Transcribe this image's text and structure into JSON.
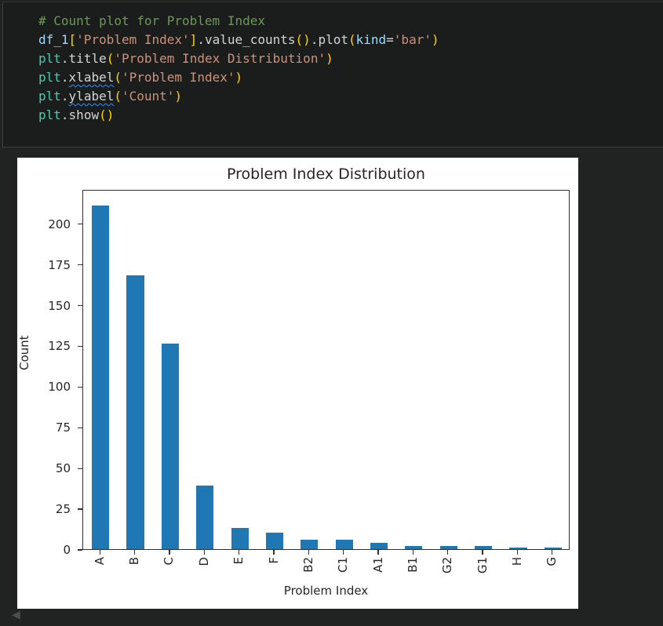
{
  "editor": {
    "palette": {
      "comment": "#6a9955",
      "variable": "#9cdcfe",
      "string": "#ce9178",
      "bracket": "#ffd700",
      "plain": "#d4d4d4",
      "module": "#4ec9b0"
    },
    "squiggle_color": "#3b8eea",
    "lines": [
      [
        {
          "text": "# Count plot for Problem Index",
          "color": "comment"
        }
      ],
      [
        {
          "text": "df_1",
          "color": "variable"
        },
        {
          "text": "[",
          "color": "bracket"
        },
        {
          "text": "'Problem Index'",
          "color": "string"
        },
        {
          "text": "]",
          "color": "bracket"
        },
        {
          "text": ".",
          "color": "plain"
        },
        {
          "text": "value_counts",
          "color": "plain"
        },
        {
          "text": "()",
          "color": "bracket"
        },
        {
          "text": ".",
          "color": "plain"
        },
        {
          "text": "plot",
          "color": "plain"
        },
        {
          "text": "(",
          "color": "bracket"
        },
        {
          "text": "kind",
          "color": "variable"
        },
        {
          "text": "=",
          "color": "plain"
        },
        {
          "text": "'bar'",
          "color": "string"
        },
        {
          "text": ")",
          "color": "bracket"
        }
      ],
      [
        {
          "text": "plt",
          "color": "module"
        },
        {
          "text": ".",
          "color": "plain"
        },
        {
          "text": "title",
          "color": "plain"
        },
        {
          "text": "(",
          "color": "bracket"
        },
        {
          "text": "'Problem Index Distribution'",
          "color": "string"
        },
        {
          "text": ")",
          "color": "bracket"
        }
      ],
      [
        {
          "text": "plt",
          "color": "module"
        },
        {
          "text": ".",
          "color": "plain"
        },
        {
          "text": "xlabel",
          "color": "plain",
          "squiggle": true
        },
        {
          "text": "(",
          "color": "bracket"
        },
        {
          "text": "'Problem Index'",
          "color": "string"
        },
        {
          "text": ")",
          "color": "bracket"
        }
      ],
      [
        {
          "text": "plt",
          "color": "module"
        },
        {
          "text": ".",
          "color": "plain"
        },
        {
          "text": "ylabel",
          "color": "plain",
          "squiggle": true
        },
        {
          "text": "(",
          "color": "bracket"
        },
        {
          "text": "'Count'",
          "color": "string"
        },
        {
          "text": ")",
          "color": "bracket"
        }
      ],
      [
        {
          "text": "plt",
          "color": "module"
        },
        {
          "text": ".",
          "color": "plain"
        },
        {
          "text": "show",
          "color": "plain"
        },
        {
          "text": "()",
          "color": "bracket"
        }
      ]
    ]
  },
  "chart_data": {
    "type": "bar",
    "title": "Problem Index Distribution",
    "xlabel": "Problem Index",
    "ylabel": "Count",
    "categories": [
      "A",
      "B",
      "C",
      "D",
      "E",
      "F",
      "B2",
      "C1",
      "A1",
      "B1",
      "G2",
      "G1",
      "H",
      "G"
    ],
    "values": [
      211,
      168,
      126,
      39,
      13,
      10,
      6,
      6,
      4,
      2,
      2,
      2,
      1,
      1
    ],
    "yticks": [
      0,
      25,
      50,
      75,
      100,
      125,
      150,
      175,
      200
    ],
    "ylim": [
      0,
      221
    ],
    "grid": false,
    "legend": false,
    "xtick_rotation": 90,
    "bar_color": "#1f77b4",
    "background": "#ffffff"
  },
  "icons": {
    "collapse_left": "◀"
  }
}
